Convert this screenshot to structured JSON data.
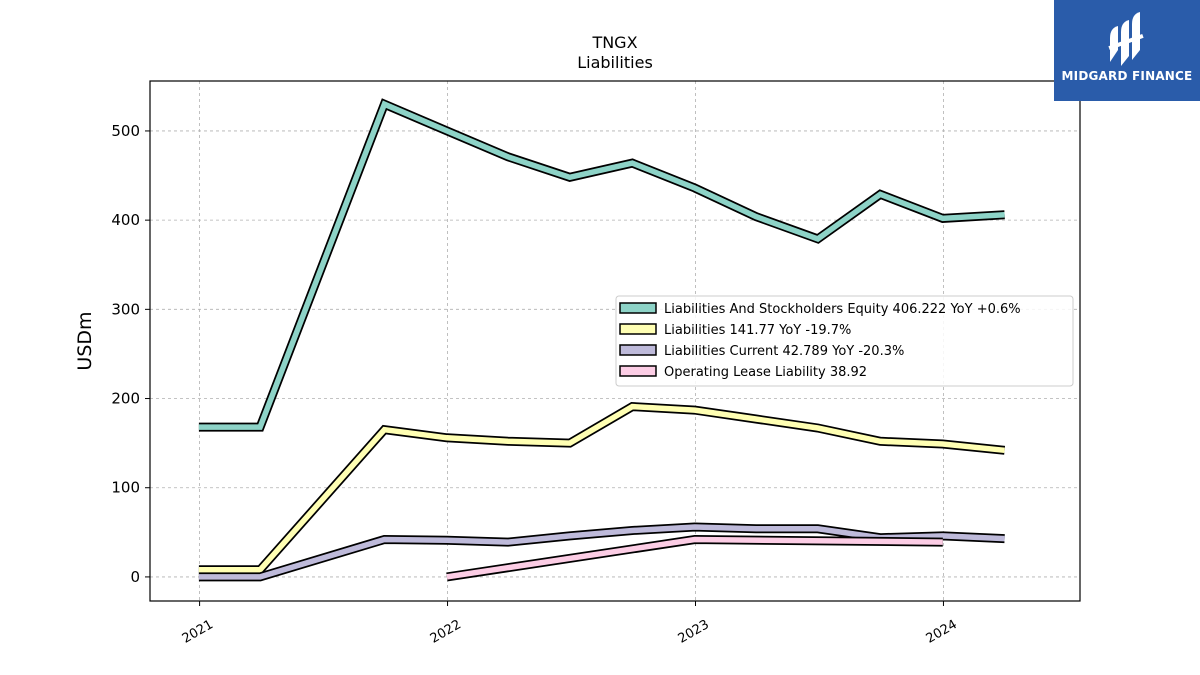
{
  "chart_data": {
    "type": "line",
    "title": "TNGX",
    "subtitle": "Liabilities",
    "xlabel": "",
    "ylabel": "USDm",
    "ylim": [
      -27,
      556
    ],
    "yticks": [
      0,
      100,
      200,
      300,
      400,
      500
    ],
    "xlim": [
      "2020-10-20",
      "2024-07-20"
    ],
    "xticks": [
      {
        "date": "2021-01-01",
        "label": "2021"
      },
      {
        "date": "2022-01-01",
        "label": "2022"
      },
      {
        "date": "2023-01-01",
        "label": "2023"
      },
      {
        "date": "2024-01-01",
        "label": "2024"
      }
    ],
    "grid": true,
    "legend_position": "center-right",
    "series": [
      {
        "name": "Liabilities And Stockholders Equity",
        "legend_label": "Liabilities And Stockholders Equity  406.222 YoY +0.6%",
        "color": "#8dd3c7",
        "points": [
          [
            "2020-12-31",
            168
          ],
          [
            "2021-03-31",
            168
          ],
          [
            "2021-09-30",
            530
          ],
          [
            "2021-12-31",
            500
          ],
          [
            "2022-03-31",
            471
          ],
          [
            "2022-06-30",
            448
          ],
          [
            "2022-09-30",
            464
          ],
          [
            "2022-12-31",
            436
          ],
          [
            "2023-03-31",
            404
          ],
          [
            "2023-06-30",
            379
          ],
          [
            "2023-09-30",
            429
          ],
          [
            "2023-12-31",
            402
          ],
          [
            "2024-03-31",
            406
          ]
        ]
      },
      {
        "name": "Liabilities",
        "legend_label": "Liabilities  141.77 YoY -19.7%",
        "color": "#ffffb3",
        "points": [
          [
            "2020-12-31",
            8
          ],
          [
            "2021-03-31",
            8
          ],
          [
            "2021-09-30",
            165
          ],
          [
            "2021-12-31",
            156
          ],
          [
            "2022-03-31",
            152
          ],
          [
            "2022-06-30",
            150
          ],
          [
            "2022-09-30",
            191
          ],
          [
            "2022-12-31",
            187
          ],
          [
            "2023-03-31",
            177
          ],
          [
            "2023-06-30",
            167
          ],
          [
            "2023-09-30",
            152
          ],
          [
            "2023-12-31",
            149
          ],
          [
            "2024-03-31",
            142
          ]
        ]
      },
      {
        "name": "Liabilities Current",
        "legend_label": "Liabilities Current  42.789 YoY -20.3%",
        "color": "#bebada",
        "points": [
          [
            "2020-12-31",
            0
          ],
          [
            "2021-03-31",
            0
          ],
          [
            "2021-09-30",
            42
          ],
          [
            "2021-12-31",
            41
          ],
          [
            "2022-03-31",
            39
          ],
          [
            "2022-06-30",
            46
          ],
          [
            "2022-09-30",
            52
          ],
          [
            "2022-12-31",
            56
          ],
          [
            "2023-03-31",
            54
          ],
          [
            "2023-06-30",
            54
          ],
          [
            "2023-09-30",
            44
          ],
          [
            "2023-12-31",
            46
          ],
          [
            "2024-03-31",
            43
          ]
        ]
      },
      {
        "name": "Operating Lease Liability",
        "legend_label": "Operating Lease Liability  38.92",
        "color": "#fccde5",
        "points": [
          [
            "2021-12-31",
            0
          ],
          [
            "2022-12-31",
            42
          ],
          [
            "2023-12-31",
            39
          ]
        ]
      }
    ]
  },
  "logo": {
    "text": "MIDGARD FINANCE",
    "background": "#2a5caa"
  }
}
